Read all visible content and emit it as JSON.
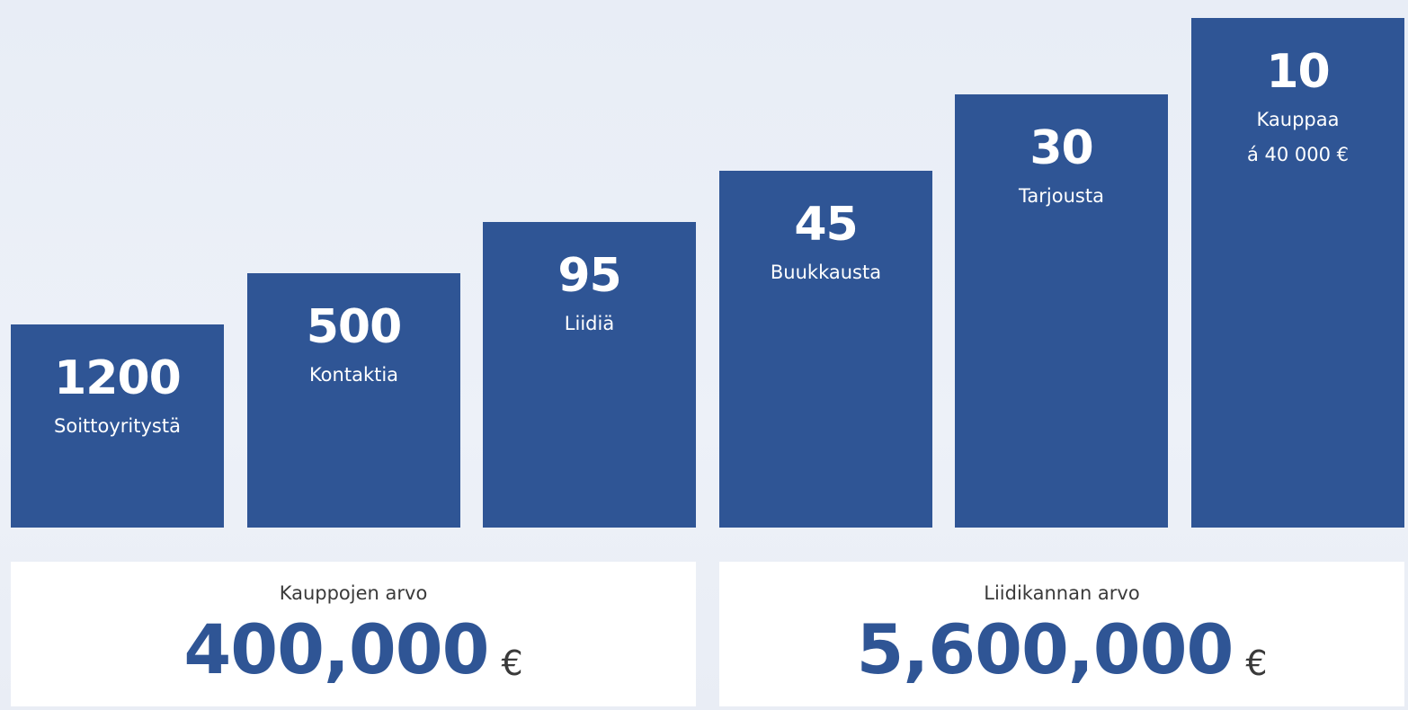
{
  "funnel": [
    {
      "value": "1200",
      "label": "Soittoyritystä"
    },
    {
      "value": "500",
      "label": "Kontaktia"
    },
    {
      "value": "95",
      "label": "Liidiä"
    },
    {
      "value": "45",
      "label": "Buukkausta"
    },
    {
      "value": "30",
      "label": "Tarjousta"
    },
    {
      "value": "10",
      "label": "Kauppaa",
      "sublabel": "á 40 000 €"
    }
  ],
  "summary": {
    "deals_value": {
      "title": "Kauppojen arvo",
      "amount": "400,000",
      "currency": "€"
    },
    "leadbase_value": {
      "title": "Liidikannan arvo",
      "amount": "5,600,000",
      "currency": "€"
    }
  },
  "colors": {
    "bar": "#2f5595",
    "background": "#e9eef7",
    "panel": "#ffffff",
    "amount": "#2f5595"
  }
}
